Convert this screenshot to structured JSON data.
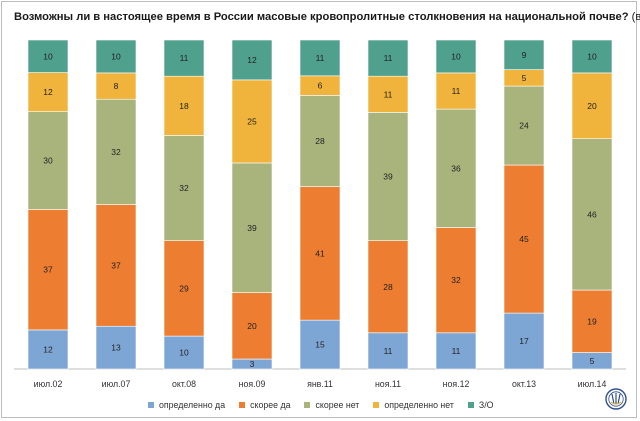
{
  "title": "Возможны ли в настоящее время в России масовые кровопролитные столкновения на национальной почве?",
  "title_suffix": "(в %)",
  "chart_data": {
    "type": "bar",
    "stacked": true,
    "percent": true,
    "categories": [
      "июл.02",
      "июл.07",
      "окт.08",
      "ноя.09",
      "янв.11",
      "ноя.11",
      "ноя.12",
      "окт.13",
      "июл.14"
    ],
    "series": [
      {
        "name": "определенно да",
        "color": "#7ea6d4",
        "values": [
          12,
          13,
          10,
          3,
          15,
          11,
          11,
          17,
          5
        ]
      },
      {
        "name": "скорее да",
        "color": "#ed7d31",
        "values": [
          37,
          37,
          29,
          20,
          41,
          28,
          32,
          45,
          19
        ]
      },
      {
        "name": "скорее нет",
        "color": "#a9b47c",
        "values": [
          30,
          32,
          32,
          39,
          28,
          39,
          36,
          24,
          46
        ]
      },
      {
        "name": "определенно нет",
        "color": "#f0b43c",
        "values": [
          12,
          8,
          18,
          25,
          6,
          11,
          11,
          5,
          20
        ]
      },
      {
        "name": "З/О",
        "color": "#4fa08d",
        "values": [
          10,
          10,
          11,
          12,
          11,
          11,
          10,
          9,
          10
        ]
      }
    ],
    "grid": false,
    "legend_position": "bottom"
  }
}
